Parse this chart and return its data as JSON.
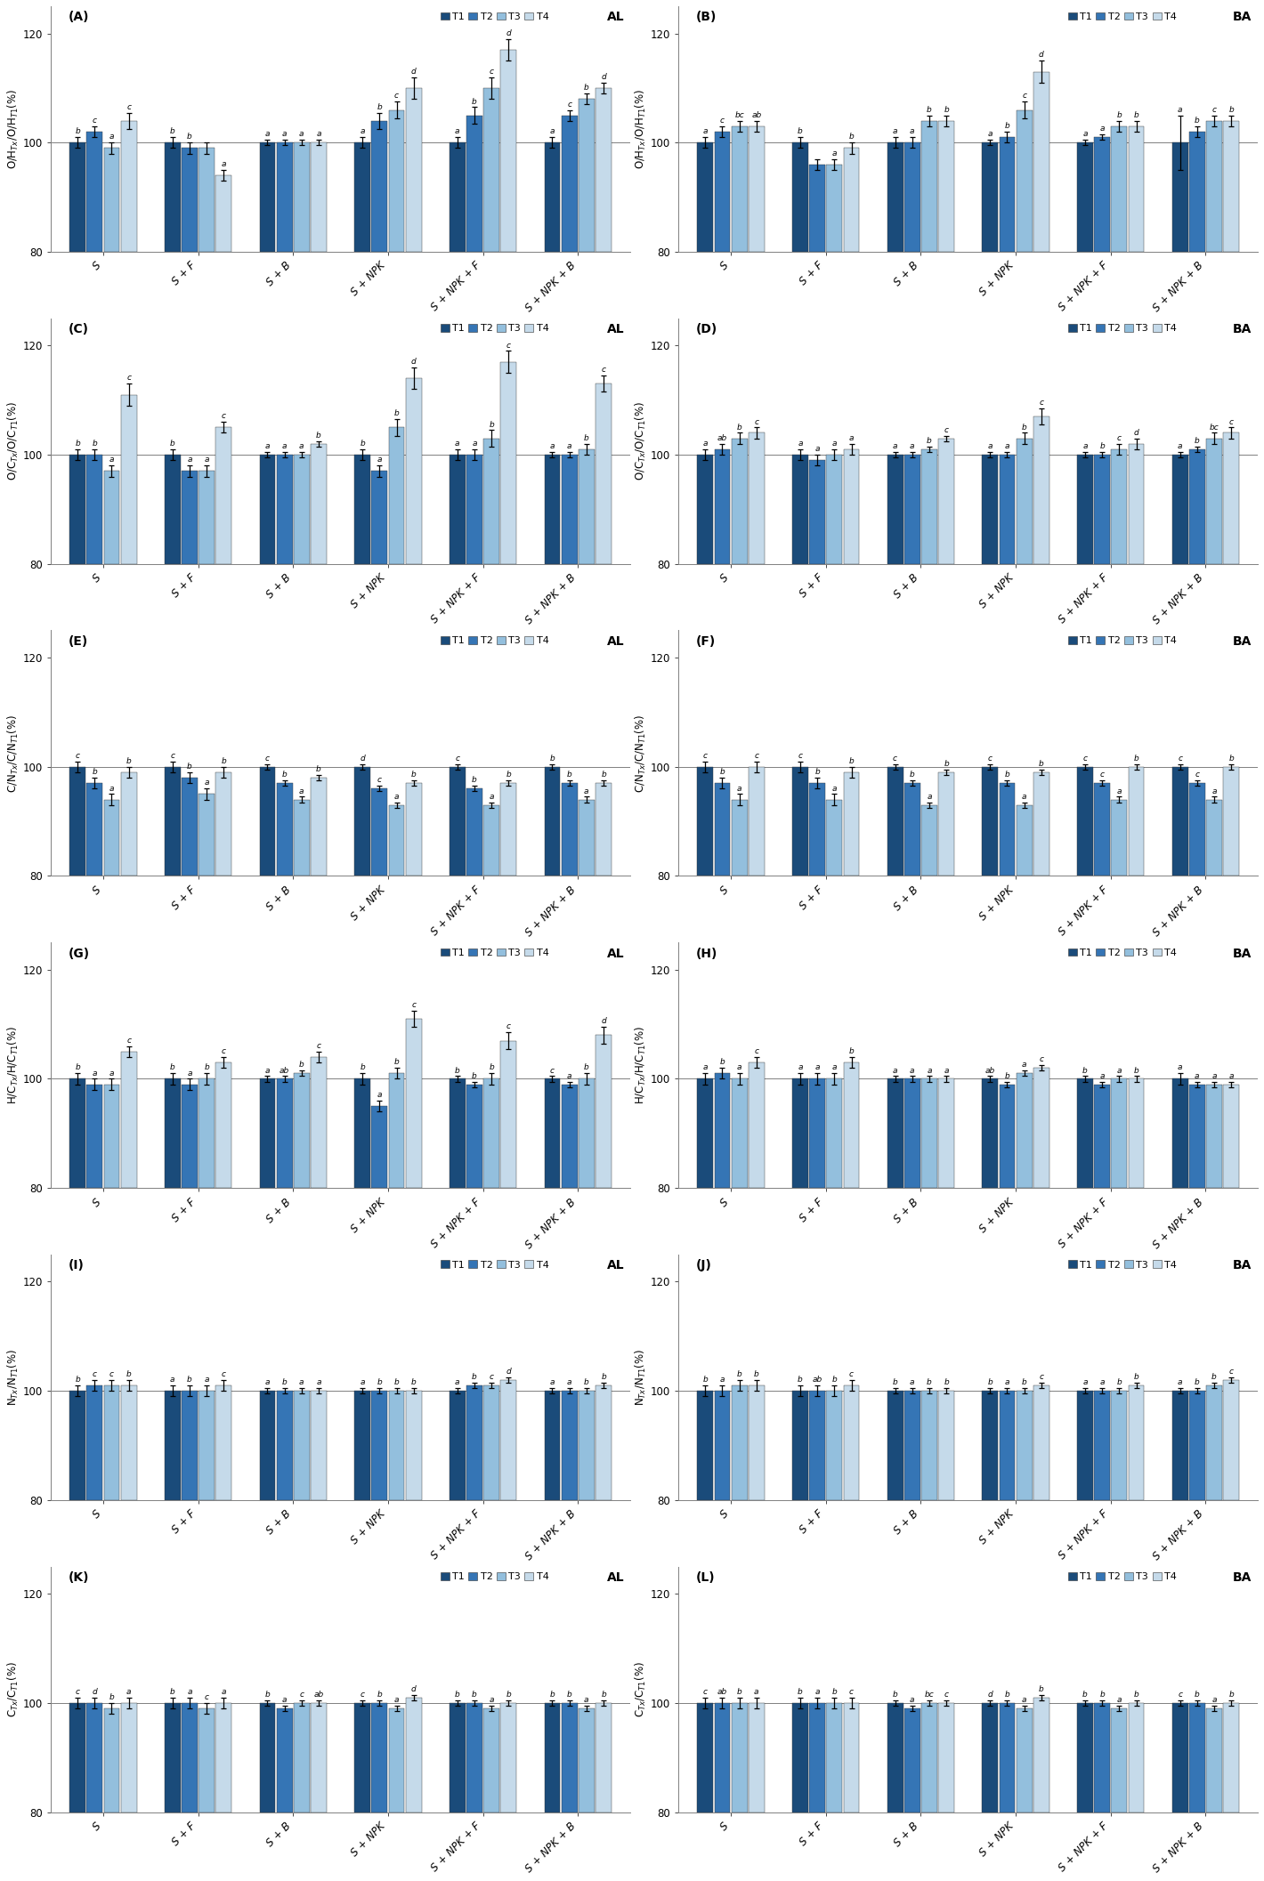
{
  "colors": [
    "#1a4b7a",
    "#3575b5",
    "#93bfdd",
    "#c5daea"
  ],
  "categories": [
    "S",
    "S + F",
    "S + B",
    "S + NPK",
    "S + NPK + F",
    "S + NPK + B"
  ],
  "ylim": [
    80,
    122
  ],
  "yticks": [
    80,
    100,
    120
  ],
  "panels": [
    {
      "label": "A",
      "loc": "AL",
      "ylabel": "O/H$_{Tx}$/O/H$_{T1}$(%)",
      "values": [
        [
          100,
          102,
          99,
          104
        ],
        [
          100,
          99,
          99,
          94
        ],
        [
          100,
          100,
          100,
          100
        ],
        [
          100,
          104,
          106,
          110
        ],
        [
          100,
          105,
          110,
          117
        ],
        [
          100,
          105,
          108,
          110
        ]
      ],
      "errors": [
        [
          1,
          1,
          1,
          1.5
        ],
        [
          1,
          1,
          1,
          1
        ],
        [
          0.5,
          0.5,
          0.5,
          0.5
        ],
        [
          1,
          1.5,
          1.5,
          2
        ],
        [
          1,
          1.5,
          2,
          2
        ],
        [
          1,
          1,
          1,
          1
        ]
      ],
      "letters": [
        [
          "b",
          "c",
          "a",
          "c"
        ],
        [
          "b",
          "b",
          "",
          "a"
        ],
        [
          "a",
          "a",
          "a",
          "a"
        ],
        [
          "a",
          "b",
          "c",
          "d"
        ],
        [
          "a",
          "b",
          "c",
          "d"
        ],
        [
          "a",
          "c",
          "b",
          "d"
        ]
      ]
    },
    {
      "label": "B",
      "loc": "BA",
      "ylabel": "O/H$_{Tx}$/O/H$_{T1}$(%)",
      "values": [
        [
          100,
          102,
          103,
          103
        ],
        [
          100,
          96,
          96,
          99
        ],
        [
          100,
          100,
          104,
          104
        ],
        [
          100,
          101,
          106,
          113
        ],
        [
          100,
          101,
          103,
          103
        ],
        [
          100,
          102,
          104,
          104
        ]
      ],
      "errors": [
        [
          1,
          1,
          1,
          1
        ],
        [
          1,
          1,
          1,
          1
        ],
        [
          1,
          1,
          1,
          1
        ],
        [
          0.5,
          1,
          1.5,
          2
        ],
        [
          0.5,
          0.5,
          1,
          1
        ],
        [
          5,
          1,
          1,
          1
        ]
      ],
      "letters": [
        [
          "a",
          "c",
          "bc",
          "ab"
        ],
        [
          "b",
          "",
          "a",
          "b"
        ],
        [
          "a",
          "a",
          "b",
          "b"
        ],
        [
          "a",
          "b",
          "c",
          "d"
        ],
        [
          "a",
          "a",
          "b",
          "b"
        ],
        [
          "a",
          "b",
          "c",
          "b"
        ]
      ]
    },
    {
      "label": "C",
      "loc": "AL",
      "ylabel": "O/C$_{Tx}$/O/C$_{T1}$(%)",
      "values": [
        [
          100,
          100,
          97,
          111
        ],
        [
          100,
          97,
          97,
          105
        ],
        [
          100,
          100,
          100,
          102
        ],
        [
          100,
          97,
          105,
          114
        ],
        [
          100,
          100,
          103,
          117
        ],
        [
          100,
          100,
          101,
          113
        ]
      ],
      "errors": [
        [
          1,
          1,
          1,
          2
        ],
        [
          1,
          1,
          1,
          1
        ],
        [
          0.5,
          0.5,
          0.5,
          0.5
        ],
        [
          1,
          1,
          1.5,
          2
        ],
        [
          1,
          1,
          1.5,
          2
        ],
        [
          0.5,
          0.5,
          1,
          1.5
        ]
      ],
      "letters": [
        [
          "b",
          "b",
          "a",
          "c"
        ],
        [
          "b",
          "a",
          "a",
          "c"
        ],
        [
          "a",
          "a",
          "a",
          "b"
        ],
        [
          "b",
          "a",
          "b",
          "d"
        ],
        [
          "a",
          "a",
          "b",
          "c"
        ],
        [
          "a",
          "a",
          "b",
          "c"
        ]
      ]
    },
    {
      "label": "D",
      "loc": "BA",
      "ylabel": "O/C$_{Tx}$/O/C$_{T1}$(%)",
      "values": [
        [
          100,
          101,
          103,
          104
        ],
        [
          100,
          99,
          100,
          101
        ],
        [
          100,
          100,
          101,
          103
        ],
        [
          100,
          100,
          103,
          107
        ],
        [
          100,
          100,
          101,
          102
        ],
        [
          100,
          101,
          103,
          104
        ]
      ],
      "errors": [
        [
          1,
          1,
          1,
          1
        ],
        [
          1,
          1,
          1,
          1
        ],
        [
          0.5,
          0.5,
          0.5,
          0.5
        ],
        [
          0.5,
          0.5,
          1,
          1.5
        ],
        [
          0.5,
          0.5,
          1,
          1
        ],
        [
          0.5,
          0.5,
          1,
          1
        ]
      ],
      "letters": [
        [
          "a",
          "ab",
          "b",
          "c"
        ],
        [
          "a",
          "a",
          "a",
          "a"
        ],
        [
          "a",
          "a",
          "b",
          "c"
        ],
        [
          "a",
          "a",
          "b",
          "c"
        ],
        [
          "a",
          "b",
          "c",
          "d"
        ],
        [
          "a",
          "b",
          "bc",
          "c"
        ]
      ]
    },
    {
      "label": "E",
      "loc": "AL",
      "ylabel": "C/N$_{Tx}$/C/N$_{T1}$(%)",
      "values": [
        [
          100,
          97,
          94,
          99
        ],
        [
          100,
          98,
          95,
          99
        ],
        [
          100,
          97,
          94,
          98
        ],
        [
          100,
          96,
          93,
          97
        ],
        [
          100,
          96,
          93,
          97
        ],
        [
          100,
          97,
          94,
          97
        ]
      ],
      "errors": [
        [
          1,
          1,
          1,
          1
        ],
        [
          1,
          1,
          1,
          1
        ],
        [
          0.5,
          0.5,
          0.5,
          0.5
        ],
        [
          0.5,
          0.5,
          0.5,
          0.5
        ],
        [
          0.5,
          0.5,
          0.5,
          0.5
        ],
        [
          0.5,
          0.5,
          0.5,
          0.5
        ]
      ],
      "letters": [
        [
          "c",
          "b",
          "a",
          "b"
        ],
        [
          "c",
          "b",
          "a",
          "b"
        ],
        [
          "c",
          "b",
          "a",
          "b"
        ],
        [
          "d",
          "c",
          "a",
          "b"
        ],
        [
          "c",
          "b",
          "a",
          "b"
        ],
        [
          "b",
          "b",
          "a",
          "b"
        ]
      ]
    },
    {
      "label": "F",
      "loc": "BA",
      "ylabel": "C/N$_{Tx}$/C/N$_{T1}$(%)",
      "values": [
        [
          100,
          97,
          94,
          100
        ],
        [
          100,
          97,
          94,
          99
        ],
        [
          100,
          97,
          93,
          99
        ],
        [
          100,
          97,
          93,
          99
        ],
        [
          100,
          97,
          94,
          100
        ],
        [
          100,
          97,
          94,
          100
        ]
      ],
      "errors": [
        [
          1,
          1,
          1,
          1
        ],
        [
          1,
          1,
          1,
          1
        ],
        [
          0.5,
          0.5,
          0.5,
          0.5
        ],
        [
          0.5,
          0.5,
          0.5,
          0.5
        ],
        [
          0.5,
          0.5,
          0.5,
          0.5
        ],
        [
          0.5,
          0.5,
          0.5,
          0.5
        ]
      ],
      "letters": [
        [
          "c",
          "b",
          "a",
          "c"
        ],
        [
          "c",
          "b",
          "a",
          "b"
        ],
        [
          "c",
          "b",
          "a",
          "b"
        ],
        [
          "c",
          "b",
          "a",
          "b"
        ],
        [
          "c",
          "c",
          "a",
          "b"
        ],
        [
          "c",
          "c",
          "a",
          "b"
        ]
      ]
    },
    {
      "label": "G",
      "loc": "AL",
      "ylabel": "H/C$_{Tx}$/H/C$_{T1}$(%)",
      "values": [
        [
          100,
          99,
          99,
          105
        ],
        [
          100,
          99,
          100,
          103
        ],
        [
          100,
          100,
          101,
          104
        ],
        [
          100,
          95,
          101,
          111
        ],
        [
          100,
          99,
          100,
          107
        ],
        [
          100,
          99,
          100,
          108
        ]
      ],
      "errors": [
        [
          1,
          1,
          1,
          1
        ],
        [
          1,
          1,
          1,
          1
        ],
        [
          0.5,
          0.5,
          0.5,
          1
        ],
        [
          1,
          1,
          1,
          1.5
        ],
        [
          0.5,
          0.5,
          1,
          1.5
        ],
        [
          0.5,
          0.5,
          1,
          1.5
        ]
      ],
      "letters": [
        [
          "b",
          "a",
          "a",
          "c"
        ],
        [
          "b",
          "a",
          "b",
          "c"
        ],
        [
          "a",
          "ab",
          "b",
          "c"
        ],
        [
          "b",
          "a",
          "b",
          "c"
        ],
        [
          "b",
          "b",
          "b",
          "c"
        ],
        [
          "c",
          "a",
          "b",
          "d"
        ]
      ]
    },
    {
      "label": "H",
      "loc": "BA",
      "ylabel": "H/C$_{Tx}$/H/C$_{T1}$(%)",
      "values": [
        [
          100,
          101,
          100,
          103
        ],
        [
          100,
          100,
          100,
          103
        ],
        [
          100,
          100,
          100,
          100
        ],
        [
          100,
          99,
          101,
          102
        ],
        [
          100,
          99,
          100,
          100
        ],
        [
          100,
          99,
          99,
          99
        ]
      ],
      "errors": [
        [
          1,
          1,
          1,
          1
        ],
        [
          1,
          1,
          1,
          1
        ],
        [
          0.5,
          0.5,
          0.5,
          0.5
        ],
        [
          0.5,
          0.5,
          0.5,
          0.5
        ],
        [
          0.5,
          0.5,
          0.5,
          0.5
        ],
        [
          1,
          0.5,
          0.5,
          0.5
        ]
      ],
      "letters": [
        [
          "a",
          "b",
          "a",
          "c"
        ],
        [
          "a",
          "a",
          "a",
          "b"
        ],
        [
          "a",
          "a",
          "a",
          "a"
        ],
        [
          "ab",
          "b",
          "a",
          "c"
        ],
        [
          "b",
          "a",
          "a",
          "b"
        ],
        [
          "a",
          "a",
          "a",
          "a"
        ]
      ]
    },
    {
      "label": "I",
      "loc": "AL",
      "ylabel": "N$_{Tx}$/N$_{T1}$(%)",
      "values": [
        [
          100,
          101,
          101,
          101
        ],
        [
          100,
          100,
          100,
          101
        ],
        [
          100,
          100,
          100,
          100
        ],
        [
          100,
          100,
          100,
          100
        ],
        [
          100,
          101,
          101,
          102
        ],
        [
          100,
          100,
          100,
          101
        ]
      ],
      "errors": [
        [
          1,
          1,
          1,
          1
        ],
        [
          1,
          1,
          1,
          1
        ],
        [
          0.5,
          0.5,
          0.5,
          0.5
        ],
        [
          0.5,
          0.5,
          0.5,
          0.5
        ],
        [
          0.5,
          0.5,
          0.5,
          0.5
        ],
        [
          0.5,
          0.5,
          0.5,
          0.5
        ]
      ],
      "letters": [
        [
          "b",
          "c",
          "c",
          "b"
        ],
        [
          "a",
          "b",
          "a",
          "c"
        ],
        [
          "a",
          "b",
          "a",
          "a"
        ],
        [
          "a",
          "b",
          "b",
          "b"
        ],
        [
          "a",
          "b",
          "c",
          "d"
        ],
        [
          "a",
          "a",
          "b",
          "b"
        ]
      ]
    },
    {
      "label": "J",
      "loc": "BA",
      "ylabel": "N$_{Tx}$/N$_{T1}$(%)",
      "values": [
        [
          100,
          100,
          101,
          101
        ],
        [
          100,
          100,
          100,
          101
        ],
        [
          100,
          100,
          100,
          100
        ],
        [
          100,
          100,
          100,
          101
        ],
        [
          100,
          100,
          100,
          101
        ],
        [
          100,
          100,
          101,
          102
        ]
      ],
      "errors": [
        [
          1,
          1,
          1,
          1
        ],
        [
          1,
          1,
          1,
          1
        ],
        [
          0.5,
          0.5,
          0.5,
          0.5
        ],
        [
          0.5,
          0.5,
          0.5,
          0.5
        ],
        [
          0.5,
          0.5,
          0.5,
          0.5
        ],
        [
          0.5,
          0.5,
          0.5,
          0.5
        ]
      ],
      "letters": [
        [
          "b",
          "a",
          "b",
          "b"
        ],
        [
          "b",
          "ab",
          "b",
          "c"
        ],
        [
          "b",
          "a",
          "b",
          "b"
        ],
        [
          "b",
          "a",
          "b",
          "c"
        ],
        [
          "a",
          "a",
          "b",
          "b"
        ],
        [
          "a",
          "b",
          "b",
          "c"
        ]
      ]
    },
    {
      "label": "K",
      "loc": "AL",
      "ylabel": "C$_{Tx}$/C$_{T1}$(%)",
      "values": [
        [
          100,
          100,
          99,
          100
        ],
        [
          100,
          100,
          99,
          100
        ],
        [
          100,
          99,
          100,
          100
        ],
        [
          100,
          100,
          99,
          101
        ],
        [
          100,
          100,
          99,
          100
        ],
        [
          100,
          100,
          99,
          100
        ]
      ],
      "errors": [
        [
          1,
          1,
          1,
          1
        ],
        [
          1,
          1,
          1,
          1
        ],
        [
          0.5,
          0.5,
          0.5,
          0.5
        ],
        [
          0.5,
          0.5,
          0.5,
          0.5
        ],
        [
          0.5,
          0.5,
          0.5,
          0.5
        ],
        [
          0.5,
          0.5,
          0.5,
          0.5
        ]
      ],
      "letters": [
        [
          "c",
          "d",
          "b",
          "a"
        ],
        [
          "b",
          "a",
          "c",
          "a"
        ],
        [
          "b",
          "a",
          "c",
          "ab"
        ],
        [
          "c",
          "b",
          "a",
          "d"
        ],
        [
          "b",
          "b",
          "a",
          "b"
        ],
        [
          "b",
          "b",
          "a",
          "b"
        ]
      ]
    },
    {
      "label": "L",
      "loc": "BA",
      "ylabel": "C$_{Tx}$/C$_{T1}$(%)",
      "values": [
        [
          100,
          100,
          100,
          100
        ],
        [
          100,
          100,
          100,
          100
        ],
        [
          100,
          99,
          100,
          100
        ],
        [
          100,
          100,
          99,
          101
        ],
        [
          100,
          100,
          99,
          100
        ],
        [
          100,
          100,
          99,
          100
        ]
      ],
      "errors": [
        [
          1,
          1,
          1,
          1
        ],
        [
          1,
          1,
          1,
          1
        ],
        [
          0.5,
          0.5,
          0.5,
          0.5
        ],
        [
          0.5,
          0.5,
          0.5,
          0.5
        ],
        [
          0.5,
          0.5,
          0.5,
          0.5
        ],
        [
          0.5,
          0.5,
          0.5,
          0.5
        ]
      ],
      "letters": [
        [
          "c",
          "ab",
          "b",
          "a"
        ],
        [
          "b",
          "a",
          "b",
          "c"
        ],
        [
          "b",
          "a",
          "bc",
          "c"
        ],
        [
          "d",
          "b",
          "a",
          "b"
        ],
        [
          "b",
          "b",
          "a",
          "b"
        ],
        [
          "c",
          "b",
          "a",
          "b"
        ]
      ]
    }
  ]
}
